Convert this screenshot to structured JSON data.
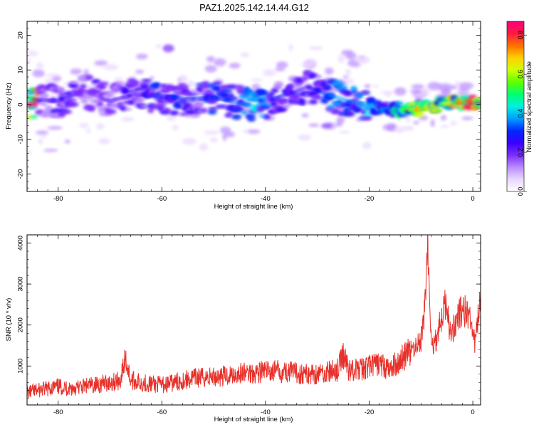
{
  "page_title": "PAZ1.2025.142.14.44.G12",
  "colors": {
    "line": "#e8302a",
    "colorbar": [
      "#ffffff",
      "#e9d6ff",
      "#b98cff",
      "#7a2cff",
      "#3a00ff",
      "#0028ff",
      "#00a0ff",
      "#00f0e0",
      "#00ff70",
      "#60ff00",
      "#d0ff00",
      "#ffd000",
      "#ff7000",
      "#ff1a40",
      "#ff0080"
    ]
  },
  "chart_data": [
    {
      "type": "heatmap",
      "title": "PAZ1.2025.142.14.44.G12",
      "xlabel": "Height of straight line (km)",
      "ylabel": "Frequency (Hz)",
      "xlim": [
        -86,
        1.5
      ],
      "ylim": [
        -25,
        24
      ],
      "xticks": [
        -80,
        -60,
        -40,
        -20,
        0
      ],
      "yticks": [
        -20,
        -10,
        0,
        10,
        20
      ],
      "colorbar": {
        "label": "Normalized spectral amplitude",
        "range": [
          0,
          0.87
        ],
        "ticks": [
          "0.0",
          "0.2",
          "0.4",
          "0.6",
          "0.8"
        ]
      },
      "ridge": [
        {
          "x": -84,
          "y": 1.5,
          "v": 0.22
        },
        {
          "x": -80,
          "y": 1.0,
          "v": 0.25
        },
        {
          "x": -75,
          "y": 4.0,
          "v": 0.2
        },
        {
          "x": -70,
          "y": 1.0,
          "v": 0.22
        },
        {
          "x": -65,
          "y": 3.0,
          "v": 0.25
        },
        {
          "x": -60,
          "y": 2.5,
          "v": 0.3
        },
        {
          "x": -55,
          "y": 1.5,
          "v": 0.28
        },
        {
          "x": -50,
          "y": 2.0,
          "v": 0.32
        },
        {
          "x": -45,
          "y": 0.5,
          "v": 0.35
        },
        {
          "x": -42,
          "y": -0.5,
          "v": 0.42
        },
        {
          "x": -38,
          "y": 2.0,
          "v": 0.3
        },
        {
          "x": -32,
          "y": 5.0,
          "v": 0.25
        },
        {
          "x": -28,
          "y": 3.0,
          "v": 0.35
        },
        {
          "x": -24,
          "y": 1.0,
          "v": 0.38
        },
        {
          "x": -20,
          "y": 0.0,
          "v": 0.4
        },
        {
          "x": -16,
          "y": -1.5,
          "v": 0.45
        },
        {
          "x": -12,
          "y": -1.5,
          "v": 0.62
        },
        {
          "x": -10,
          "y": -1.0,
          "v": 0.72
        },
        {
          "x": -6,
          "y": 0.0,
          "v": 0.6
        },
        {
          "x": -2,
          "y": 0.5,
          "v": 0.8
        },
        {
          "x": 0,
          "y": 0.5,
          "v": 0.85
        }
      ]
    },
    {
      "type": "line",
      "xlabel": "Height of straight line (km)",
      "ylabel": "SNR (10 * v/v)",
      "xlim": [
        -86,
        1.5
      ],
      "ylim": [
        50,
        4200
      ],
      "xticks": [
        -80,
        -60,
        -40,
        -20,
        0
      ],
      "yticks": [
        1000,
        2000,
        3000,
        4000
      ],
      "series": [
        {
          "x": [
            -86,
            -84,
            -82,
            -80,
            -78,
            -76,
            -74,
            -72,
            -70,
            -68,
            -67,
            -66,
            -64,
            -62,
            -60,
            -58,
            -56,
            -54,
            -52,
            -50,
            -48,
            -46,
            -44,
            -42,
            -40,
            -38,
            -36,
            -34,
            -32,
            -30,
            -28,
            -26,
            -25,
            -24,
            -22,
            -20,
            -18,
            -16,
            -14,
            -12,
            -11,
            -10,
            -9.5,
            -9,
            -8.7,
            -8.3,
            -8,
            -7,
            -6,
            -5,
            -4.5,
            -4,
            -3,
            -2,
            -1,
            0,
            0.5,
            1,
            1.5
          ],
          "y": [
            350,
            400,
            450,
            500,
            450,
            480,
            520,
            560,
            600,
            650,
            1200,
            650,
            600,
            560,
            540,
            580,
            650,
            700,
            720,
            740,
            760,
            800,
            830,
            850,
            870,
            880,
            860,
            830,
            800,
            820,
            850,
            900,
            1300,
            920,
            900,
            1000,
            1050,
            900,
            1150,
            1350,
            1500,
            1600,
            2100,
            3100,
            4150,
            2300,
            1450,
            1700,
            2200,
            2600,
            1900,
            1800,
            2200,
            2350,
            2300,
            1800,
            1500,
            2200,
            2500
          ],
          "noise_amplitude": 250
        }
      ]
    }
  ]
}
